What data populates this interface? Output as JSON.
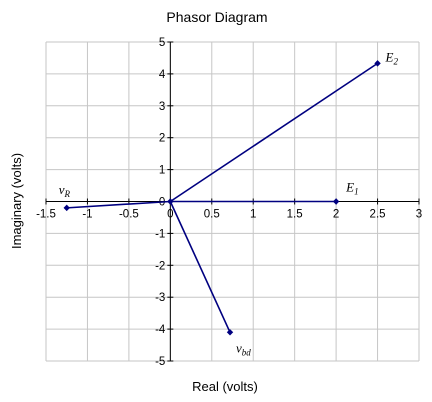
{
  "chart_data": {
    "type": "line",
    "title": "Phasor Diagram",
    "xlabel": "Real (volts)",
    "ylabel": "Imaginary (volts)",
    "xlim": [
      -1.5,
      3
    ],
    "ylim": [
      -5,
      5
    ],
    "x_ticks": [
      "-1.5",
      "-1",
      "-0.5",
      "0",
      "0.5",
      "1",
      "1.5",
      "2",
      "2.5",
      "3"
    ],
    "y_ticks": [
      "-5",
      "-4",
      "-3",
      "-2",
      "-1",
      "0",
      "1",
      "2",
      "3",
      "4",
      "5"
    ],
    "grid": true,
    "line_color": "#000080",
    "phasors": [
      {
        "base": "E",
        "sub": "2",
        "x": 2.5,
        "y": 4.33
      },
      {
        "base": "E",
        "sub": "1",
        "x": 2.0,
        "y": 0.0
      },
      {
        "base": "v",
        "sub": "R",
        "x": -1.25,
        "y": -0.2
      },
      {
        "base": "v",
        "sub": "bd",
        "x": 0.72,
        "y": -4.1
      }
    ]
  }
}
